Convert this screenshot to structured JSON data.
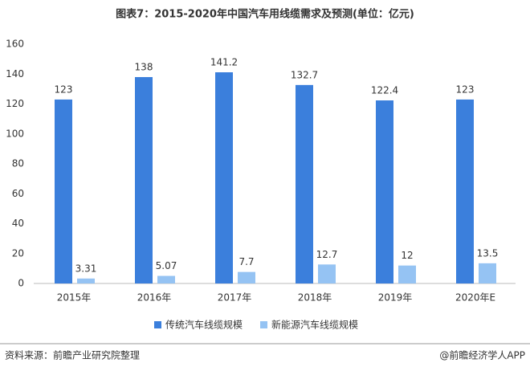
{
  "chart_data": {
    "type": "bar",
    "title": "图表7：2015-2020年中国汽车用线缆需求及预测(单位：亿元)",
    "categories": [
      "2015年",
      "2016年",
      "2017年",
      "2018年",
      "2019年",
      "2020年E"
    ],
    "series": [
      {
        "name": "传统汽车线缆规模",
        "color": "#3b7fdc",
        "values": [
          123,
          138,
          141.2,
          132.7,
          122.4,
          123
        ]
      },
      {
        "name": "新能源汽车线缆规模",
        "color": "#95c3f3",
        "values": [
          3.31,
          5.07,
          7.7,
          12.7,
          12,
          13.5
        ]
      }
    ],
    "ylim": [
      0,
      160
    ],
    "yticks": [
      0,
      20,
      40,
      60,
      80,
      100,
      120,
      140,
      160
    ],
    "grid": false,
    "legend": "bottom",
    "source": "资料来源：前瞻产业研究院整理",
    "footer": "@前瞻经济学人APP"
  }
}
